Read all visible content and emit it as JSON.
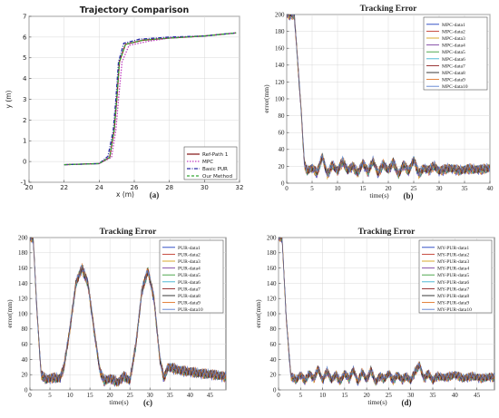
{
  "chart_data": [
    {
      "id": "a",
      "type": "line",
      "title": "Trajectory Comparison",
      "subfig_label": "(a)",
      "xlabel": "x (m)",
      "ylabel": "y (m)",
      "xlim": [
        20,
        32
      ],
      "ylim": [
        -1,
        7
      ],
      "xticks": [
        20,
        22,
        24,
        26,
        28,
        30,
        32
      ],
      "yticks": [
        -1,
        0,
        1,
        2,
        3,
        4,
        5,
        6,
        7
      ],
      "grid": true,
      "legend_position": "bottom-right",
      "series": [
        {
          "name": "Ref-Path 1",
          "color": "#8b2323",
          "dash": "",
          "x": [
            22,
            24,
            24.6,
            24.85,
            25,
            25.15,
            25.5,
            26.5,
            28,
            30,
            31.8
          ],
          "y": [
            -0.15,
            -0.1,
            0.2,
            1.5,
            3.0,
            4.8,
            5.65,
            5.85,
            5.95,
            6.05,
            6.2
          ]
        },
        {
          "name": "MPC",
          "color": "#c040c0",
          "dash": "1.5,1.5",
          "x": [
            22,
            24,
            24.7,
            24.95,
            25.1,
            25.3,
            25.7,
            26.8,
            28,
            30,
            31.8
          ],
          "y": [
            -0.15,
            -0.1,
            0.2,
            1.5,
            3.0,
            4.8,
            5.6,
            5.8,
            5.95,
            6.05,
            6.2
          ]
        },
        {
          "name": "Basic PUR",
          "color": "#2a2aa8",
          "dash": "4,1.5,1,1.5",
          "x": [
            22,
            24,
            24.5,
            24.8,
            24.95,
            25.1,
            25.4,
            26.3,
            28,
            30,
            31.8
          ],
          "y": [
            -0.15,
            -0.1,
            0.25,
            1.5,
            3.0,
            4.8,
            5.7,
            5.9,
            6.0,
            6.05,
            6.2
          ]
        },
        {
          "name": "Our Method",
          "color": "#35a835",
          "dash": "3,2",
          "x": [
            22,
            24,
            24.6,
            24.85,
            25.0,
            25.15,
            25.5,
            26.5,
            28,
            30,
            31.8
          ],
          "y": [
            -0.15,
            -0.1,
            0.2,
            1.5,
            3.0,
            4.8,
            5.65,
            5.85,
            5.95,
            6.05,
            6.2
          ]
        }
      ]
    },
    {
      "id": "b",
      "type": "line",
      "title": "Tracking Error",
      "subfig_label": "(b)",
      "xlabel": "time(s)",
      "ylabel": "error(mm)",
      "xlim": [
        0,
        40
      ],
      "ylim": [
        0,
        200
      ],
      "xticks": [
        0,
        5,
        10,
        15,
        20,
        25,
        30,
        35,
        40
      ],
      "yticks": [
        0,
        20,
        40,
        60,
        80,
        100,
        120,
        140,
        160,
        180,
        200
      ],
      "grid": true,
      "legend_position": "top-right",
      "series_names": [
        "MPC-data1",
        "MPC-data2",
        "MPC-data3",
        "MPC-data4",
        "MPC-data5",
        "MPC-data6",
        "MPC-data7",
        "MPC-data8",
        "MPC-data9",
        "MPC-data10"
      ],
      "series_colors": [
        "#1f3fbf",
        "#c0392b",
        "#d4a017",
        "#7b3fa0",
        "#3a9d3a",
        "#3bb0d0",
        "#8b1a1a",
        "#222222",
        "#e07020",
        "#5a7fd0"
      ],
      "profile_x": [
        0,
        1.5,
        2.8,
        3.5,
        4,
        5,
        6,
        7,
        8,
        9,
        10,
        11,
        12,
        13,
        14,
        15,
        16,
        17,
        18,
        19,
        20,
        21,
        22,
        23,
        24,
        25,
        26,
        27,
        28,
        29,
        30,
        32,
        34,
        36,
        38,
        40
      ],
      "profile_y": [
        200,
        200,
        90,
        22,
        15,
        18,
        12,
        32,
        10,
        22,
        14,
        26,
        15,
        20,
        12,
        24,
        13,
        27,
        11,
        23,
        15,
        25,
        10,
        22,
        14,
        28,
        11,
        18,
        15,
        21,
        14,
        18,
        15,
        17,
        16,
        18
      ],
      "spread": 5
    },
    {
      "id": "c",
      "type": "line",
      "title": "Tracking Error",
      "subfig_label": "(c)",
      "xlabel": "time(s)",
      "ylabel": "error(mm)",
      "xlim": [
        0,
        49
      ],
      "ylim": [
        0,
        200
      ],
      "xticks": [
        0,
        5,
        10,
        15,
        20,
        25,
        30,
        35,
        40,
        45
      ],
      "yticks": [
        0,
        20,
        40,
        60,
        80,
        100,
        120,
        140,
        160,
        180,
        200
      ],
      "grid": true,
      "legend_position": "top-right",
      "series_names": [
        "PUR-data1",
        "PUR-data2",
        "PUR-data3",
        "PUR-data4",
        "PUR-data5",
        "PUR-data6",
        "PUR-data7",
        "PUR-data8",
        "PUR-data9",
        "PUR-data10"
      ],
      "series_colors": [
        "#1f3fbf",
        "#c0392b",
        "#d4a017",
        "#7b3fa0",
        "#3a9d3a",
        "#3bb0d0",
        "#8b1a1a",
        "#222222",
        "#e07020",
        "#5a7fd0"
      ],
      "profile_x": [
        0,
        0.8,
        1.8,
        2.8,
        4,
        6,
        7.5,
        8.5,
        10,
        11.5,
        13,
        14.5,
        16,
        17.5,
        18.5,
        20,
        22,
        23.5,
        25,
        26.5,
        28,
        29.5,
        31,
        32.5,
        33.5,
        34.5,
        36,
        38,
        40,
        42,
        44,
        46,
        48,
        49
      ],
      "profile_y": [
        200,
        200,
        100,
        20,
        14,
        16,
        15,
        30,
        80,
        140,
        160,
        140,
        80,
        25,
        12,
        15,
        10,
        18,
        12,
        60,
        130,
        157,
        120,
        40,
        15,
        30,
        28,
        25,
        24,
        22,
        21,
        20,
        18,
        17
      ],
      "spread": 6
    },
    {
      "id": "d",
      "type": "line",
      "title": "Tracking Error",
      "subfig_label": "(d)",
      "xlabel": "time(s)",
      "ylabel": "error(mm)",
      "xlim": [
        0,
        49
      ],
      "ylim": [
        0,
        200
      ],
      "xticks": [
        0,
        5,
        10,
        15,
        20,
        25,
        30,
        35,
        40,
        45
      ],
      "yticks": [
        0,
        20,
        40,
        60,
        80,
        100,
        120,
        140,
        160,
        180,
        200
      ],
      "grid": true,
      "legend_position": "top-right",
      "series_names": [
        "MY-PUR-data1",
        "MY-PUR-data2",
        "MY-PUR-data3",
        "MY-PUR-data4",
        "MY-PUR-data5",
        "MY-PUR-data6",
        "MY-PUR-data7",
        "MY-PUR-data8",
        "MY-PUR-data9",
        "MY-PUR-data10"
      ],
      "series_colors": [
        "#1f3fbf",
        "#c0392b",
        "#d4a017",
        "#7b3fa0",
        "#3a9d3a",
        "#3bb0d0",
        "#8b1a1a",
        "#222222",
        "#e07020",
        "#5a7fd0"
      ],
      "profile_x": [
        0,
        0.8,
        1.8,
        2.8,
        4,
        5,
        6,
        7,
        8,
        9,
        10,
        11,
        12,
        13,
        14,
        15,
        16,
        17,
        18,
        19,
        20,
        21,
        22,
        23,
        24,
        25,
        26,
        27,
        28,
        29,
        30,
        31,
        32,
        33,
        34,
        35,
        36,
        38,
        40,
        42,
        44,
        46,
        48,
        49
      ],
      "profile_y": [
        200,
        200,
        90,
        18,
        13,
        20,
        12,
        22,
        14,
        28,
        12,
        25,
        13,
        20,
        11,
        22,
        14,
        27,
        10,
        24,
        13,
        26,
        10,
        18,
        14,
        22,
        12,
        20,
        13,
        18,
        12,
        24,
        33,
        14,
        22,
        12,
        18,
        16,
        20,
        15,
        18,
        15,
        17,
        16
      ],
      "spread": 5
    }
  ]
}
